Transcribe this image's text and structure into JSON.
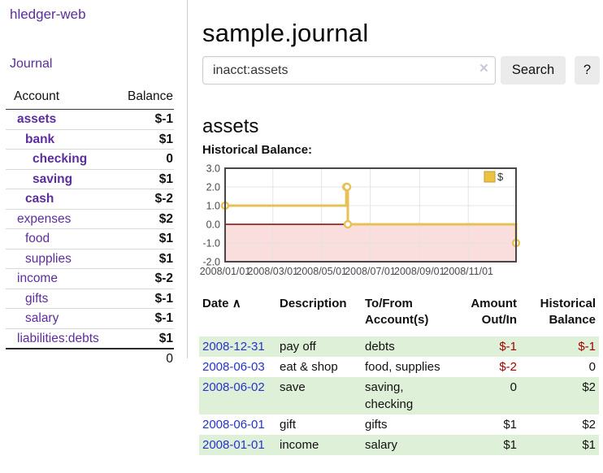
{
  "app": {
    "title": "hledger-web"
  },
  "sidebar": {
    "journal_label": "Journal",
    "accounts": {
      "header_account": "Account",
      "header_balance": "Balance",
      "rows": [
        {
          "name": "assets",
          "balance": "$-1"
        },
        {
          "name": "bank",
          "balance": "$1"
        },
        {
          "name": "checking",
          "balance": "0"
        },
        {
          "name": "saving",
          "balance": "$1"
        },
        {
          "name": "cash",
          "balance": "$-2"
        },
        {
          "name": "expenses",
          "balance": "$2"
        },
        {
          "name": "food",
          "balance": "$1"
        },
        {
          "name": "supplies",
          "balance": "$1"
        },
        {
          "name": "income",
          "balance": "$-2"
        },
        {
          "name": "gifts",
          "balance": "$-1"
        },
        {
          "name": "salary",
          "balance": "$-1"
        },
        {
          "name": "liabilities:debts",
          "balance": "$1"
        }
      ],
      "total": "0"
    }
  },
  "main": {
    "title": "sample.journal",
    "search": {
      "value": "inacct:assets",
      "clear_icon": "×",
      "button_label": "Search",
      "help_label": "?"
    },
    "account_heading": "assets"
  },
  "chart_data": {
    "type": "line",
    "step": true,
    "title": "Historical Balance:",
    "legend": {
      "label": "$",
      "position": "top-right",
      "swatch_color": "#edc240"
    },
    "ylim": [
      -2,
      3
    ],
    "xlim": [
      "2008-01-01",
      "2008-12-31"
    ],
    "y_ticks": [
      {
        "value": 3,
        "label": "3.0"
      },
      {
        "value": 2,
        "label": "2.0"
      },
      {
        "value": 1,
        "label": "1.0"
      },
      {
        "value": 0,
        "label": "0.0"
      },
      {
        "value": -1,
        "label": "-1.0"
      },
      {
        "value": -2,
        "label": "-2.0"
      }
    ],
    "x_ticks": [
      {
        "date": "2008-01-01",
        "label": "2008/01/01"
      },
      {
        "date": "2008-03-01",
        "label": "2008/03/01"
      },
      {
        "date": "2008-05-01",
        "label": "2008/05/01"
      },
      {
        "date": "2008-07-01",
        "label": "2008/07/01"
      },
      {
        "date": "2008-09-01",
        "label": "2008/09/01"
      },
      {
        "date": "2008-11-01",
        "label": "2008/11/01"
      }
    ],
    "series": [
      {
        "name": "$",
        "color": "#e8c156",
        "marker_fill": "#ffffff",
        "points": [
          [
            "2008-01-01",
            1
          ],
          [
            "2008-06-01",
            2
          ],
          [
            "2008-06-02",
            2
          ],
          [
            "2008-06-03",
            0
          ],
          [
            "2008-12-31",
            -1
          ]
        ]
      }
    ],
    "zero_line_color": "#8b0000",
    "negative_region_color": "#fadddd",
    "grid": true
  },
  "transactions": {
    "headers": {
      "date": "Date",
      "sort_icon": "∧",
      "description": "Description",
      "account": "To/From Account(s)",
      "amount": "Amount Out/In",
      "balance": "Historical Balance"
    },
    "rows": [
      {
        "date": "2008-12-31",
        "description": "pay off",
        "account": "debts",
        "amount": "$-1",
        "balance": "$-1"
      },
      {
        "date": "2008-06-03",
        "description": "eat & shop",
        "account": "food, supplies",
        "amount": "$-2",
        "balance": "0"
      },
      {
        "date": "2008-06-02",
        "description": "save",
        "account": "saving, checking",
        "amount": "0",
        "balance": "$2"
      },
      {
        "date": "2008-06-01",
        "description": "gift",
        "account": "gifts",
        "amount": "$1",
        "balance": "$2"
      },
      {
        "date": "2008-01-01",
        "description": "income",
        "account": "salary",
        "amount": "$1",
        "balance": "$1"
      }
    ]
  },
  "colors": {
    "accent_purple": "#5b2d9e",
    "link_blue": "#2633cc",
    "negative_strong": "#a40000",
    "negative_soft": "#bc7e7e",
    "row_green": "#dff0d8",
    "chart_gold": "#edc240"
  }
}
